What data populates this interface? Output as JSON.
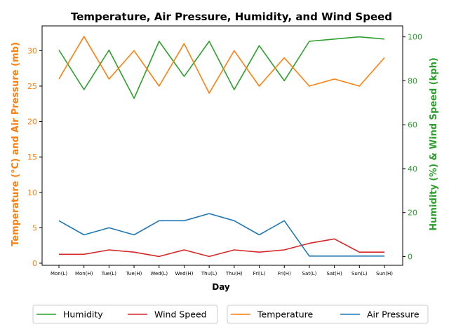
{
  "chart_data": {
    "type": "line",
    "title": "Temperature, Air Pressure, Humidity, and Wind Speed",
    "xlabel": "Day",
    "ylabel_left": "Temperature (°C) and Air Pressure (mb)",
    "ylabel_right": "Humidity (%) & Wind Speed (kph)",
    "categories": [
      "Mon(L)",
      "Mon(H)",
      "Tue(L)",
      "Tue(H)",
      "Wed(L)",
      "Wed(H)",
      "Thu(L)",
      "Thu(H)",
      "Fri(L)",
      "Fri(H)",
      "Sat(L)",
      "Sat(H)",
      "Sun(L)",
      "Sun(H)"
    ],
    "left_axis": {
      "ylim": [
        -0.3,
        33.5
      ],
      "ticks": [
        0,
        5,
        10,
        15,
        20,
        25,
        30
      ],
      "color": "#ff7f0e"
    },
    "right_axis": {
      "ylim": [
        -4,
        105
      ],
      "ticks": [
        0,
        20,
        40,
        60,
        80,
        100
      ],
      "color": "#2ca02c"
    },
    "series_left": [
      {
        "name": "Temperature",
        "color": "#ff7f0e",
        "values": [
          26,
          32,
          26,
          30,
          25,
          31,
          24,
          30,
          25,
          29,
          25,
          26,
          25,
          29
        ]
      },
      {
        "name": "Air Pressure",
        "color": "#1f77b4",
        "values": [
          6,
          4,
          5,
          4,
          6,
          6,
          7,
          6,
          4,
          6,
          1,
          1,
          1,
          1
        ]
      }
    ],
    "series_right": [
      {
        "name": "Humidity",
        "color": "#2ca02c",
        "values": [
          94,
          76,
          94,
          72,
          98,
          82,
          98,
          76,
          96,
          80,
          98,
          99,
          100,
          99
        ]
      },
      {
        "name": "Wind Speed",
        "color": "#d62728",
        "values": [
          1,
          1,
          3,
          2,
          0,
          3,
          0,
          3,
          2,
          3,
          6,
          8,
          2,
          2
        ]
      }
    ],
    "legend_placement": "bottom",
    "grid": false
  }
}
